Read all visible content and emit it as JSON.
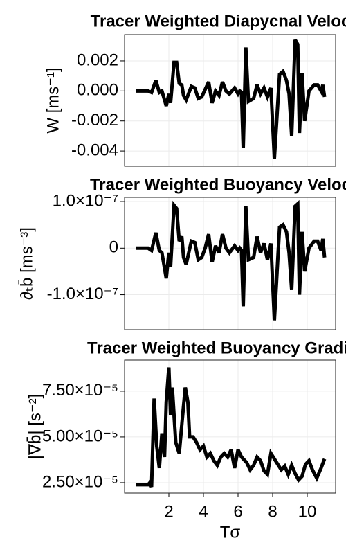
{
  "chart_data": [
    {
      "type": "line",
      "title": "Tracer Weighted Diapycnal Velocity",
      "ylabel": "W [ms⁻¹]",
      "x": [
        0.1,
        0.4,
        0.8,
        1.0,
        1.25,
        1.45,
        1.6,
        1.85,
        2.0,
        2.1,
        2.3,
        2.45,
        2.6,
        2.75,
        2.85,
        3.0,
        3.3,
        3.5,
        3.7,
        3.9,
        4.1,
        4.3,
        4.5,
        4.7,
        4.9,
        5.1,
        5.3,
        5.5,
        5.8,
        6.0,
        6.1,
        6.2,
        6.3,
        6.45,
        6.6,
        6.9,
        7.1,
        7.3,
        7.5,
        7.7,
        7.9,
        8.1,
        8.4,
        8.6,
        8.8,
        8.95,
        9.1,
        9.3,
        9.45,
        9.55,
        9.7,
        9.85,
        10.1,
        10.4,
        10.6,
        10.8,
        10.9,
        11.0
      ],
      "series": [
        {
          "color": "#000000",
          "values": [
            0,
            0,
            0,
            -0.0001,
            0.0007,
            -0.0001,
            0.0,
            -0.001,
            -0.0002,
            -0.0008,
            0.0019,
            0.0019,
            0.0005,
            0.0004,
            -0.0003,
            -0.0006,
            0.0003,
            0.0002,
            -0.0005,
            -0.0004,
            0.0001,
            0.0006,
            -0.0008,
            0.0,
            -0.0003,
            0.0006,
            0.0,
            -0.0002,
            0.0002,
            -0.0002,
            0.0,
            -0.0001,
            -0.0038,
            0.0029,
            -0.0007,
            -0.0005,
            0.0004,
            -0.0002,
            0.0002,
            -0.0004,
            0.0002,
            -0.0045,
            0.0011,
            0.0013,
            0.0007,
            -0.0002,
            -0.003,
            0.0034,
            0.0031,
            -0.0028,
            0.0012,
            -0.002,
            0.0,
            0.0004,
            0.0004,
            0.0,
            0.0004,
            -0.0004
          ]
        }
      ],
      "xlim": [
        -0.56,
        11.64
      ],
      "xticks": [
        2,
        4,
        6,
        8,
        10
      ],
      "ylim": [
        -0.00501,
        0.00375
      ],
      "yticks": [
        0.002,
        {
          "value": 0,
          "label": "0.000"
        },
        -0.002,
        -0.004
      ],
      "grid": true
    },
    {
      "type": "line",
      "title": "Tracer Weighted Buoyancy Velocity",
      "ylabel": "∂ₜb̄ [ms⁻³]",
      "x": [
        0.1,
        0.4,
        0.8,
        1.0,
        1.25,
        1.45,
        1.6,
        1.85,
        2.0,
        2.1,
        2.3,
        2.45,
        2.6,
        2.75,
        2.85,
        3.0,
        3.3,
        3.5,
        3.7,
        3.9,
        4.1,
        4.3,
        4.5,
        4.7,
        4.9,
        5.1,
        5.3,
        5.5,
        5.8,
        6.0,
        6.1,
        6.2,
        6.3,
        6.45,
        6.6,
        6.9,
        7.1,
        7.3,
        7.5,
        7.7,
        7.9,
        8.1,
        8.4,
        8.6,
        8.8,
        8.95,
        9.1,
        9.3,
        9.45,
        9.55,
        9.7,
        9.85,
        10.1,
        10.4,
        10.6,
        10.8,
        10.9,
        11.0
      ],
      "series": [
        {
          "color": "#000000",
          "values": [
            0,
            0,
            0,
            -5e-09,
            3.3e-08,
            -5e-09,
            -1e-08,
            -6.5e-08,
            -1e-08,
            -4e-08,
            9.2e-08,
            8.5e-08,
            1.5e-08,
            2.5e-08,
            -2e-08,
            -3.5e-08,
            1.5e-08,
            1.2e-08,
            -2.5e-08,
            -2e-08,
            0,
            3e-08,
            -3e-08,
            5e-09,
            -1e-08,
            3e-08,
            0,
            -1e-08,
            5e-09,
            -5e-09,
            0,
            -5e-09,
            -1.25e-07,
            9e-08,
            -2.5e-08,
            -2e-08,
            2.5e-08,
            -1e-08,
            1e-08,
            -2.5e-08,
            1e-08,
            -1.55e-07,
            4.5e-08,
            5e-08,
            3.5e-08,
            -1e-08,
            -9e-08,
            9e-08,
            9.5e-08,
            -1e-07,
            3.5e-08,
            -5e-08,
            0,
            1.5e-08,
            1.5e-08,
            -5e-09,
            2e-08,
            -2e-08
          ]
        }
      ],
      "xlim": [
        -0.56,
        11.64
      ],
      "xticks": [
        2,
        4,
        6,
        8,
        10
      ],
      "ylim": [
        -1.75e-07,
        1.09e-07
      ],
      "yticks": [
        {
          "value": 1e-07,
          "label": "1.0×10⁻⁷"
        },
        0,
        {
          "value": -1e-07,
          "label": "-1.0×10⁻⁷"
        }
      ],
      "grid": true
    },
    {
      "type": "line",
      "title": "Tracer Weighted Buoyancy Gradient",
      "ylabel": "|∇b̄| [s⁻²]",
      "xlabel": "Tσ",
      "x": [
        0.1,
        0.5,
        0.8,
        0.9,
        1.0,
        1.15,
        1.3,
        1.45,
        1.6,
        1.75,
        1.85,
        2.0,
        2.1,
        2.2,
        2.4,
        2.6,
        2.8,
        2.95,
        3.1,
        3.2,
        3.4,
        3.6,
        3.8,
        4.0,
        4.2,
        4.4,
        4.6,
        4.8,
        5.0,
        5.2,
        5.4,
        5.6,
        5.8,
        6.0,
        6.2,
        6.5,
        6.7,
        6.9,
        7.1,
        7.3,
        7.5,
        7.7,
        7.9,
        8.1,
        8.3,
        8.5,
        8.7,
        8.9,
        9.1,
        9.3,
        9.5,
        9.7,
        9.9,
        10.1,
        10.3,
        10.55,
        10.8,
        11.0
      ],
      "series": [
        {
          "color": "#000000",
          "values": [
            2.39e-05,
            2.39e-05,
            2.39e-05,
            2.5e-05,
            2.27e-05,
            7.1e-05,
            4.5e-05,
            3.3e-05,
            5.2e-05,
            3.9e-05,
            6.9e-05,
            8.8e-05,
            6.2e-05,
            7.7e-05,
            4.7e-05,
            4.1e-05,
            6.2e-05,
            7.7e-05,
            6.9e-05,
            5e-05,
            5e-05,
            4.7e-05,
            4.3e-05,
            4.5e-05,
            3.9e-05,
            4.1e-05,
            3.7e-05,
            3.45e-05,
            3.9e-05,
            4.1e-05,
            3.9e-05,
            4.3e-05,
            3.3e-05,
            4.3e-05,
            3.9e-05,
            3.6e-05,
            3.2e-05,
            3.45e-05,
            3.9e-05,
            3.7e-05,
            3.15e-05,
            2.95e-05,
            4.1e-05,
            3.8e-05,
            3.5e-05,
            3.2e-05,
            3.4e-05,
            2.95e-05,
            3.45e-05,
            3e-05,
            2.65e-05,
            2.85e-05,
            3.5e-05,
            3.7e-05,
            3.2e-05,
            2.75e-05,
            3.3e-05,
            3.8e-05
          ]
        }
      ],
      "xlim": [
        -0.56,
        11.64
      ],
      "xticks": [
        2,
        4,
        6,
        8,
        10
      ],
      "ylim": [
        1.93e-05,
        9.2e-05
      ],
      "yticks": [
        {
          "value": 7.5e-05,
          "label": "7.50×10⁻⁵"
        },
        {
          "value": 5e-05,
          "label": "5.00×10⁻⁵"
        },
        {
          "value": 2.5e-05,
          "label": "2.50×10⁻⁵"
        }
      ],
      "grid": true
    }
  ]
}
